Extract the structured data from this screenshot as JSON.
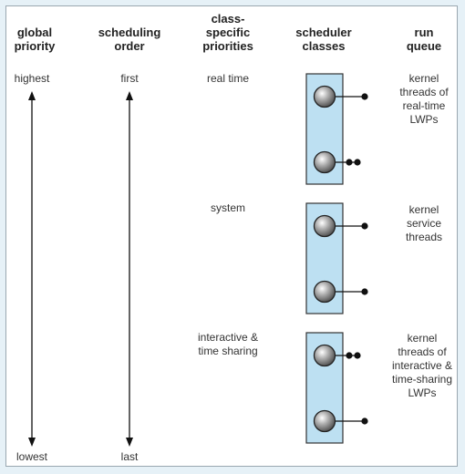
{
  "colors": {
    "background": "#e6f1f7",
    "panel": "#ffffff",
    "class_box_fill": "#bde0f2",
    "class_box_stroke": "#333333",
    "ball": "#8a8a8a",
    "line": "#111111"
  },
  "headers": {
    "global_priority": "global\npriority",
    "scheduling_order": "scheduling\norder",
    "class_specific_priorities": "class-\nspecific\npriorities",
    "scheduler_classes": "scheduler\nclasses",
    "run_queue": "run\nqueue"
  },
  "axis": {
    "global_top": "highest",
    "global_bottom": "lowest",
    "order_top": "first",
    "order_bottom": "last"
  },
  "classes": [
    {
      "name": "real time",
      "run_queue_label": "kernel\nthreads of\nreal-time\nLWPs",
      "queue_threads": [
        1,
        2
      ]
    },
    {
      "name": "system",
      "run_queue_label": "kernel\nservice\nthreads",
      "queue_threads": [
        1,
        1
      ]
    },
    {
      "name": "interactive &\ntime sharing",
      "run_queue_label": "kernel\nthreads of\ninteractive &\ntime-sharing\nLWPs",
      "queue_threads": [
        2,
        1
      ]
    }
  ]
}
